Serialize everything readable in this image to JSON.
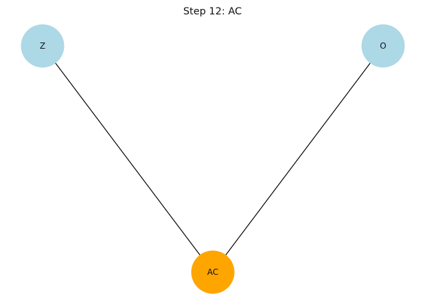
{
  "diagram": {
    "title": "Step 12: AC",
    "nodes": [
      {
        "id": "Z",
        "label": "Z",
        "color": "#add8e6"
      },
      {
        "id": "O",
        "label": "O",
        "color": "#add8e6"
      },
      {
        "id": "AC",
        "label": "AC",
        "color": "#ffa500"
      }
    ],
    "edges": [
      {
        "from": "Z",
        "to": "AC"
      },
      {
        "from": "O",
        "to": "AC"
      }
    ],
    "edge_color": "#000000",
    "highlighted_node": "AC"
  }
}
